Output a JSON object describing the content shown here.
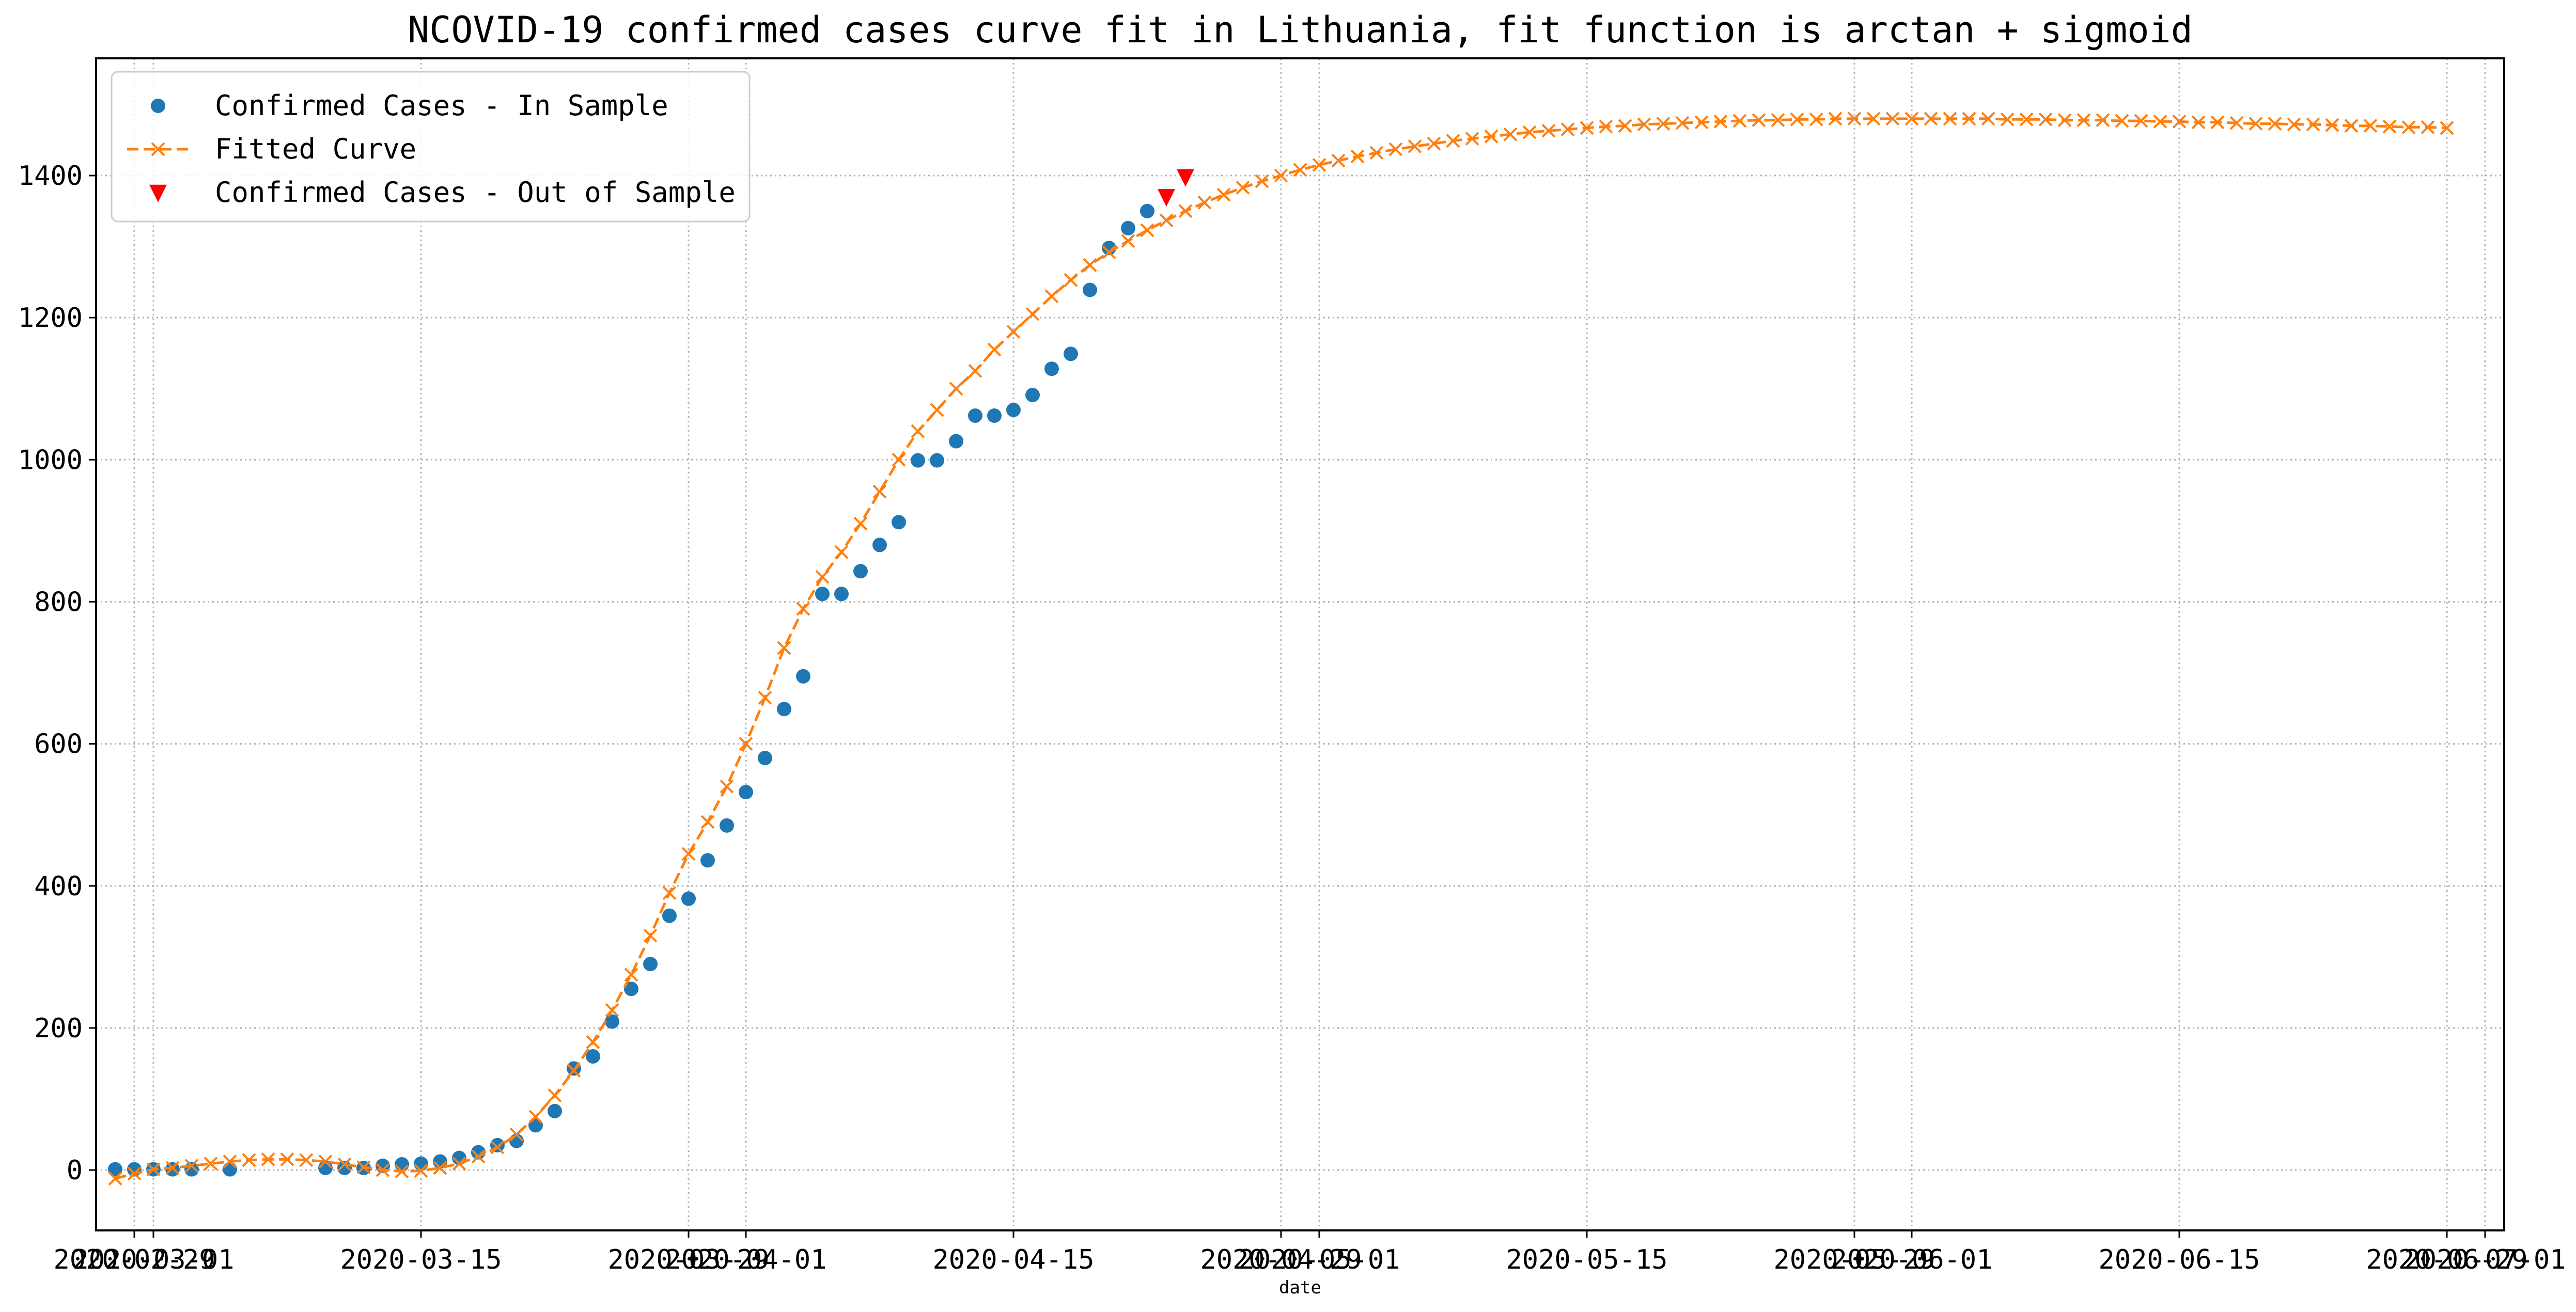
{
  "chart_data": {
    "type": "line",
    "title": "NCOVID-19 confirmed cases curve fit in Lithuania, fit function is arctan + sigmoid",
    "xlabel": "date",
    "ylabel": "",
    "x_type": "date",
    "xlim": [
      "2020-02-27",
      "2020-07-02"
    ],
    "ylim": [
      -85,
      1565
    ],
    "grid": true,
    "grid_style": "dotted",
    "legend_position": "top-left",
    "x_ticks": [
      {
        "date": "2020-02-29",
        "label": "2020-02-29"
      },
      {
        "date": "2020-03-01",
        "label": "2020-03-01"
      },
      {
        "date": "2020-03-15",
        "label": "2020-03-15"
      },
      {
        "date": "2020-03-29",
        "label": "2020-03-29"
      },
      {
        "date": "2020-04-01",
        "label": "2020-04-01"
      },
      {
        "date": "2020-04-15",
        "label": "2020-04-15"
      },
      {
        "date": "2020-04-29",
        "label": "2020-04-29"
      },
      {
        "date": "2020-05-01",
        "label": "2020-05-01"
      },
      {
        "date": "2020-05-15",
        "label": "2020-05-15"
      },
      {
        "date": "2020-05-29",
        "label": "2020-05-29"
      },
      {
        "date": "2020-06-01",
        "label": "2020-06-01"
      },
      {
        "date": "2020-06-15",
        "label": "2020-06-15"
      },
      {
        "date": "2020-06-29",
        "label": "2020-06-29"
      },
      {
        "date": "2020-07-01",
        "label": "2020-07-01"
      }
    ],
    "y_ticks": [
      0,
      200,
      400,
      600,
      800,
      1000,
      1200,
      1400
    ],
    "series": [
      {
        "name": "Confirmed Cases - In Sample",
        "kind": "scatter",
        "marker": "circle",
        "color": "#1f77b4",
        "points": [
          {
            "x": "2020-02-28",
            "y": 1
          },
          {
            "x": "2020-02-29",
            "y": 1
          },
          {
            "x": "2020-03-01",
            "y": 1
          },
          {
            "x": "2020-03-02",
            "y": 1
          },
          {
            "x": "2020-03-03",
            "y": 1
          },
          {
            "x": "2020-03-05",
            "y": 1
          },
          {
            "x": "2020-03-10",
            "y": 3
          },
          {
            "x": "2020-03-11",
            "y": 3
          },
          {
            "x": "2020-03-12",
            "y": 3
          },
          {
            "x": "2020-03-13",
            "y": 6
          },
          {
            "x": "2020-03-14",
            "y": 8
          },
          {
            "x": "2020-03-15",
            "y": 9
          },
          {
            "x": "2020-03-16",
            "y": 12
          },
          {
            "x": "2020-03-17",
            "y": 17
          },
          {
            "x": "2020-03-18",
            "y": 25
          },
          {
            "x": "2020-03-19",
            "y": 35
          },
          {
            "x": "2020-03-20",
            "y": 41
          },
          {
            "x": "2020-03-21",
            "y": 63
          },
          {
            "x": "2020-03-22",
            "y": 83
          },
          {
            "x": "2020-03-23",
            "y": 143
          },
          {
            "x": "2020-03-24",
            "y": 160
          },
          {
            "x": "2020-03-25",
            "y": 209
          },
          {
            "x": "2020-03-26",
            "y": 255
          },
          {
            "x": "2020-03-27",
            "y": 290
          },
          {
            "x": "2020-03-28",
            "y": 358
          },
          {
            "x": "2020-03-29",
            "y": 382
          },
          {
            "x": "2020-03-30",
            "y": 436
          },
          {
            "x": "2020-03-31",
            "y": 485
          },
          {
            "x": "2020-04-01",
            "y": 532
          },
          {
            "x": "2020-04-02",
            "y": 580
          },
          {
            "x": "2020-04-03",
            "y": 649
          },
          {
            "x": "2020-04-04",
            "y": 695
          },
          {
            "x": "2020-04-05",
            "y": 811
          },
          {
            "x": "2020-04-06",
            "y": 811
          },
          {
            "x": "2020-04-07",
            "y": 843
          },
          {
            "x": "2020-04-08",
            "y": 880
          },
          {
            "x": "2020-04-09",
            "y": 912
          },
          {
            "x": "2020-04-10",
            "y": 999
          },
          {
            "x": "2020-04-11",
            "y": 999
          },
          {
            "x": "2020-04-12",
            "y": 1026
          },
          {
            "x": "2020-04-13",
            "y": 1062
          },
          {
            "x": "2020-04-14",
            "y": 1062
          },
          {
            "x": "2020-04-15",
            "y": 1070
          },
          {
            "x": "2020-04-16",
            "y": 1091
          },
          {
            "x": "2020-04-17",
            "y": 1128
          },
          {
            "x": "2020-04-18",
            "y": 1149
          },
          {
            "x": "2020-04-19",
            "y": 1239
          },
          {
            "x": "2020-04-20",
            "y": 1298
          },
          {
            "x": "2020-04-21",
            "y": 1326
          },
          {
            "x": "2020-04-22",
            "y": 1350
          }
        ]
      },
      {
        "name": "Fitted Curve",
        "kind": "line",
        "marker": "x",
        "dashed": true,
        "color": "#ff7f0e",
        "x_start": "2020-02-28",
        "values": [
          -12,
          -5,
          1,
          3,
          6,
          9,
          12,
          14,
          15,
          15,
          14,
          12,
          8,
          4,
          0,
          -2,
          -1,
          3,
          9,
          19,
          32,
          50,
          75,
          105,
          140,
          180,
          225,
          275,
          330,
          390,
          445,
          490,
          540,
          600,
          665,
          735,
          790,
          835,
          870,
          910,
          955,
          1000,
          1040,
          1070,
          1100,
          1125,
          1155,
          1180,
          1205,
          1230,
          1253,
          1274,
          1292,
          1308,
          1323,
          1337,
          1350,
          1362,
          1373,
          1383,
          1392,
          1400,
          1408,
          1415,
          1421,
          1427,
          1432,
          1437,
          1441,
          1445,
          1449,
          1452,
          1455,
          1458,
          1461,
          1463,
          1465,
          1467,
          1469,
          1470,
          1472,
          1473,
          1474,
          1475,
          1476,
          1477,
          1478,
          1478,
          1479,
          1479,
          1480,
          1480,
          1480,
          1480,
          1480,
          1480,
          1480,
          1480,
          1480,
          1479,
          1479,
          1479,
          1478,
          1478,
          1478,
          1477,
          1477,
          1476,
          1476,
          1475,
          1475,
          1474,
          1473,
          1473,
          1472,
          1472,
          1471,
          1470,
          1470,
          1469,
          1468,
          1468,
          1467
        ]
      },
      {
        "name": "Confirmed Cases - Out of Sample",
        "kind": "scatter",
        "marker": "triangle-down",
        "color": "#ff0000",
        "points": [
          {
            "x": "2020-04-23",
            "y": 1370
          },
          {
            "x": "2020-04-24",
            "y": 1398
          }
        ]
      }
    ]
  }
}
